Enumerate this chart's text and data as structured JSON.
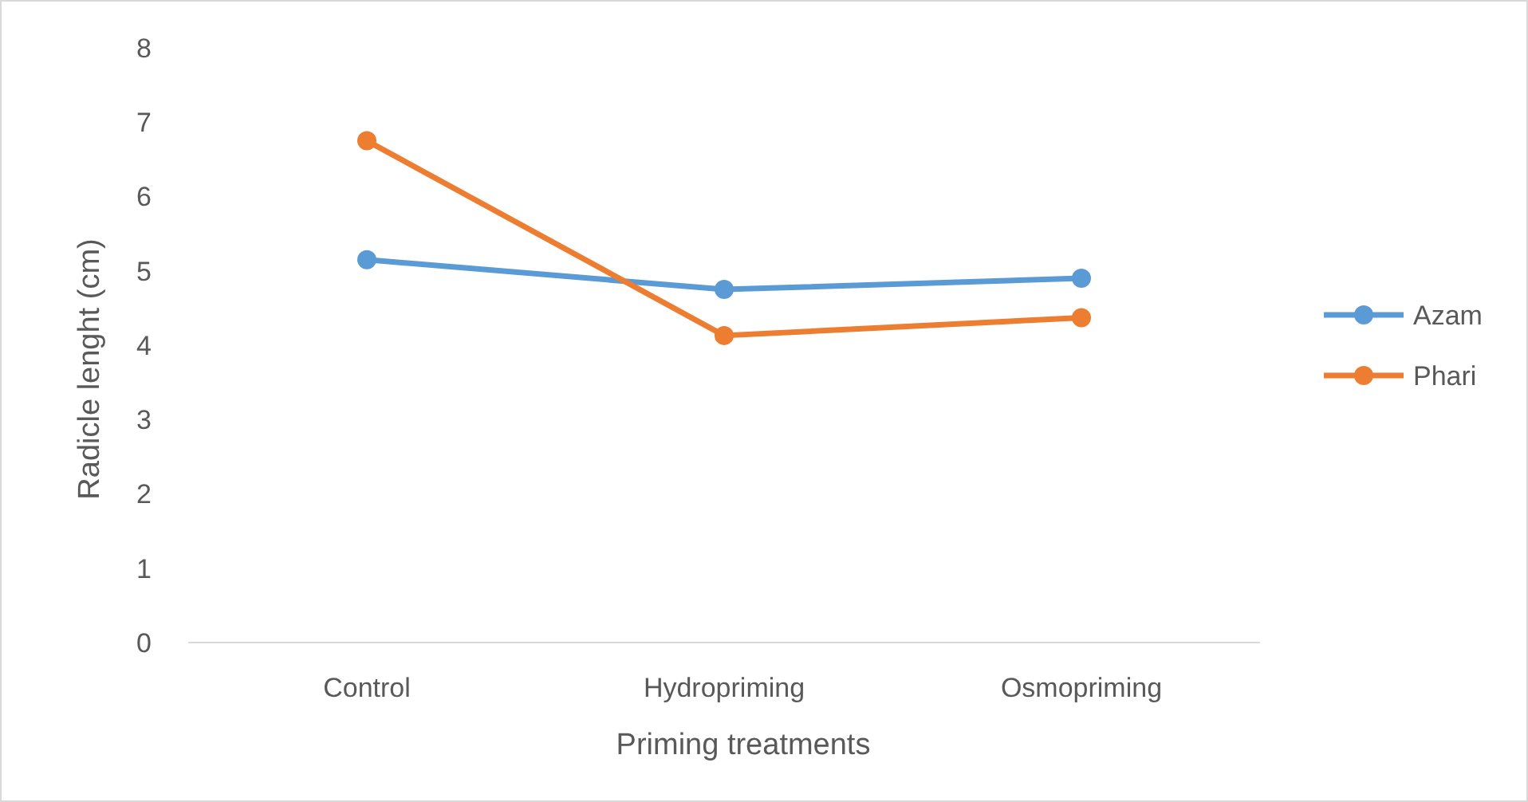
{
  "chart_data": {
    "type": "line",
    "xlabel": "Priming treatments",
    "ylabel": "Radicle lenght (cm)",
    "categories": [
      "Control",
      "Hydropriming",
      "Osmopriming"
    ],
    "series": [
      {
        "name": "Azam",
        "color": "#5b9bd5",
        "values": [
          5.15,
          4.75,
          4.9
        ]
      },
      {
        "name": "Phari",
        "color": "#ed7d31",
        "values": [
          6.75,
          4.13,
          4.37
        ]
      }
    ],
    "ylim": [
      0,
      8
    ],
    "yticks": [
      0,
      1,
      2,
      3,
      4,
      5,
      6,
      7,
      8
    ],
    "grid": false,
    "legend": "right",
    "marker": "circle",
    "line_style": "solid"
  }
}
